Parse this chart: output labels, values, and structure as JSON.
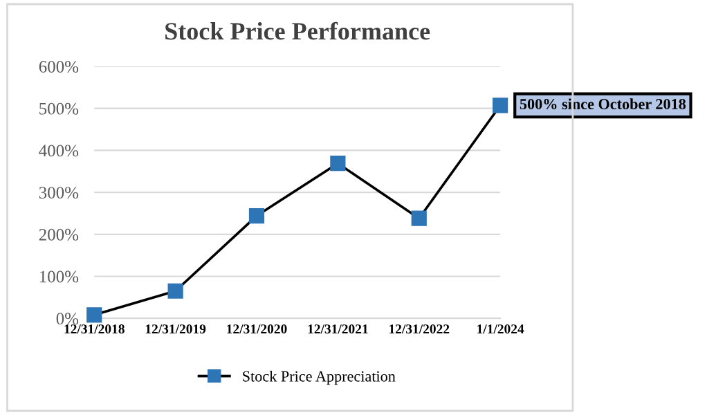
{
  "chart_data": {
    "type": "line",
    "title": "Stock Price Performance",
    "categories": [
      "12/31/2018",
      "12/31/2019",
      "12/31/2020",
      "12/31/2021",
      "12/31/2022",
      "1/1/2024"
    ],
    "series": [
      {
        "name": "Stock Price Appreciation",
        "color": "#2e75b6",
        "values": [
          8,
          65,
          244,
          369,
          238,
          507
        ]
      }
    ],
    "ylim": [
      0,
      600
    ],
    "yticks": [
      {
        "value": 0,
        "label": "0%"
      },
      {
        "value": 100,
        "label": "100%"
      },
      {
        "value": 200,
        "label": "200%"
      },
      {
        "value": 300,
        "label": "300%"
      },
      {
        "value": 400,
        "label": "400%"
      },
      {
        "value": 500,
        "label": "500%"
      },
      {
        "value": 600,
        "label": "600%"
      }
    ],
    "annotations": [
      {
        "text": "500% since October 2018",
        "x": "1/1/2024",
        "y": 507
      }
    ],
    "grid": "y",
    "legend": "bottom",
    "marker": "square",
    "line_style": "solid"
  }
}
